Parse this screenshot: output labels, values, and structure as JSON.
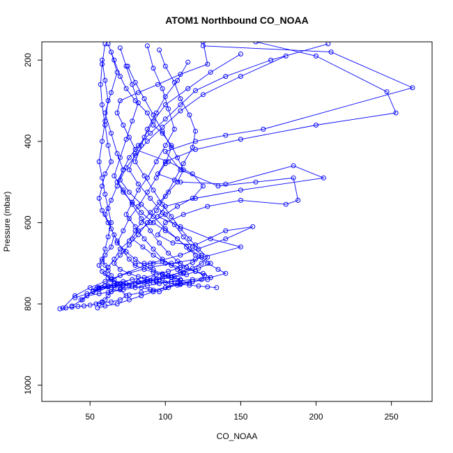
{
  "chart_data": {
    "type": "scatter",
    "title": "ATOM1 Northbound CO_NOAA",
    "xlabel": "CO_NOAA",
    "ylabel": "Pressure (mbar)",
    "xlim": [
      18,
      277
    ],
    "ylim": [
      1040,
      155
    ],
    "y_reversed": true,
    "x_ticks": [
      50,
      100,
      150,
      200,
      250
    ],
    "y_ticks": [
      200,
      400,
      600,
      800,
      1000
    ],
    "grid": false,
    "color": "#0000ff",
    "marker": "open-circle",
    "series": [
      {
        "x": [
          125,
          128,
          110,
          95,
          82,
          70,
          68,
          72,
          76,
          80,
          102,
          118,
          125,
          118,
          108,
          100,
          90,
          82,
          78,
          85,
          92,
          98,
          104,
          110,
          114,
          120,
          125,
          130,
          128,
          118,
          108,
          100,
          92,
          84,
          76,
          68,
          60,
          55
        ],
        "y": [
          155,
          210,
          235,
          260,
          280,
          300,
          330,
          360,
          390,
          420,
          450,
          480,
          510,
          540,
          560,
          580,
          600,
          620,
          640,
          660,
          680,
          695,
          700,
          700,
          710,
          720,
          725,
          735,
          740,
          745,
          750,
          760,
          770,
          780,
          790,
          800,
          805,
          810
        ]
      },
      {
        "x": [
          160,
          200,
          247,
          253,
          200,
          150,
          120,
          100,
          95,
          110,
          140,
          185,
          205,
          150,
          120,
          100,
          95,
          110,
          130,
          150,
          120,
          90,
          70,
          60,
          50,
          40,
          32
        ],
        "y": [
          155,
          190,
          278,
          330,
          360,
          395,
          420,
          450,
          480,
          500,
          505,
          460,
          490,
          520,
          540,
          560,
          585,
          610,
          640,
          660,
          690,
          710,
          730,
          745,
          760,
          780,
          810
        ]
      },
      {
        "x": [
          125,
          210,
          264,
          165,
          140,
          120,
          100,
          110,
          135,
          160,
          185,
          188,
          180,
          150,
          128,
          112,
          100,
          95,
          105,
          120,
          140,
          158,
          140,
          110,
          90,
          70,
          55,
          45,
          38
        ],
        "y": [
          165,
          180,
          268,
          370,
          385,
          400,
          425,
          470,
          510,
          500,
          490,
          545,
          555,
          545,
          560,
          580,
          600,
          630,
          650,
          655,
          620,
          610,
          640,
          680,
          700,
          730,
          760,
          790,
          805
        ]
      },
      {
        "x": [
          62,
          66,
          70,
          74,
          80,
          88,
          92,
          98,
          104,
          108,
          112,
          108,
          102,
          96,
          90,
          84,
          80,
          76,
          70,
          66,
          62,
          60,
          64,
          70,
          76,
          84,
          90,
          96,
          102,
          110,
          118,
          124,
          126,
          120,
          110,
          100,
          92,
          86,
          80
        ],
        "y": [
          160,
          200,
          240,
          270,
          300,
          330,
          360,
          380,
          410,
          440,
          470,
          500,
          525,
          550,
          575,
          600,
          620,
          645,
          665,
          690,
          710,
          725,
          740,
          750,
          755,
          760,
          765,
          770,
          760,
          750,
          745,
          740,
          730,
          720,
          710,
          700,
          700,
          700,
          700
        ]
      },
      {
        "x": [
          60,
          58,
          57,
          58,
          60,
          62,
          64,
          60,
          58,
          56,
          58,
          62,
          66,
          64,
          60,
          58,
          56,
          58,
          62,
          66,
          70,
          74,
          70,
          64,
          58,
          54,
          50,
          46,
          42,
          38,
          34,
          30
        ],
        "y": [
          160,
          210,
          260,
          310,
          360,
          410,
          450,
          480,
          510,
          540,
          570,
          600,
          630,
          660,
          680,
          695,
          705,
          720,
          735,
          750,
          765,
          780,
          790,
          795,
          797,
          800,
          803,
          805,
          806,
          808,
          810,
          812
        ]
      },
      {
        "x": [
          208,
          170,
          140,
          120,
          110,
          100,
          90,
          82,
          76,
          72,
          68,
          72,
          78,
          84,
          92,
          100,
          108,
          114,
          120,
          128,
          135,
          140,
          130,
          118,
          104,
          92,
          80,
          70,
          62,
          56
        ],
        "y": [
          160,
          200,
          240,
          275,
          310,
          345,
          380,
          410,
          440,
          470,
          500,
          525,
          550,
          575,
          600,
          620,
          640,
          660,
          680,
          700,
          715,
          725,
          735,
          740,
          745,
          748,
          750,
          752,
          755,
          760
        ]
      },
      {
        "x": [
          88,
          92,
          98,
          102,
          106,
          100,
          94,
          88,
          82,
          78,
          74,
          80,
          86,
          92,
          98,
          104,
          108,
          112,
          104,
          96,
          88,
          80,
          72,
          64,
          56,
          48,
          40
        ],
        "y": [
          165,
          220,
          270,
          320,
          370,
          410,
          450,
          490,
          520,
          550,
          580,
          610,
          640,
          665,
          690,
          705,
          715,
          725,
          735,
          740,
          745,
          750,
          755,
          760,
          765,
          775,
          785
        ]
      },
      {
        "x": [
          70,
          74,
          78,
          82,
          78,
          74,
          70,
          66,
          72,
          78,
          84,
          90,
          96,
          102,
          108,
          114,
          120,
          114,
          106,
          98,
          90,
          82,
          74,
          66,
          58,
          52,
          48,
          44
        ],
        "y": [
          170,
          215,
          260,
          305,
          350,
          395,
          440,
          485,
          520,
          555,
          590,
          620,
          650,
          675,
          695,
          710,
          720,
          728,
          734,
          738,
          742,
          746,
          750,
          755,
          760,
          770,
          780,
          790
        ]
      },
      {
        "x": [
          96,
          100,
          106,
          110,
          116,
          120,
          118,
          112,
          106,
          100,
          94,
          88,
          82,
          76,
          70,
          66,
          70,
          76,
          82,
          88,
          94,
          100,
          104,
          110,
          116,
          122,
          128,
          134
        ],
        "y": [
          175,
          215,
          255,
          295,
          335,
          375,
          415,
          455,
          495,
          535,
          570,
          600,
          630,
          655,
          680,
          700,
          715,
          725,
          733,
          740,
          745,
          748,
          750,
          752,
          754,
          756,
          758,
          760
        ]
      },
      {
        "x": [
          64,
          68,
          64,
          60,
          64,
          68,
          72,
          68,
          64,
          60,
          64,
          68,
          72,
          76,
          80,
          86,
          92,
          98,
          104,
          110,
          104,
          96,
          88,
          80,
          72,
          64,
          56,
          48
        ],
        "y": [
          180,
          230,
          280,
          330,
          380,
          430,
          470,
          510,
          545,
          580,
          615,
          645,
          670,
          690,
          705,
          715,
          722,
          728,
          734,
          740,
          745,
          750,
          755,
          760,
          765,
          770,
          775,
          780
        ]
      },
      {
        "x": [
          150,
          130,
          115,
          100,
          92,
          86,
          80,
          76,
          82,
          90,
          98,
          106,
          112,
          118,
          124,
          118,
          110,
          102,
          94,
          86,
          78,
          72,
          66,
          60,
          56,
          52
        ],
        "y": [
          185,
          230,
          270,
          310,
          350,
          390,
          430,
          470,
          505,
          540,
          575,
          605,
          635,
          660,
          680,
          698,
          710,
          720,
          728,
          735,
          740,
          745,
          750,
          756,
          762,
          768
        ]
      },
      {
        "x": [
          180,
          150,
          125,
          110,
          98,
          88,
          80,
          74,
          70,
          76,
          84,
          92,
          100,
          108,
          116,
          124,
          130,
          122,
          112,
          102,
          92,
          82,
          72,
          62,
          54
        ],
        "y": [
          190,
          240,
          285,
          325,
          365,
          400,
          435,
          465,
          495,
          525,
          555,
          585,
          615,
          640,
          665,
          685,
          700,
          712,
          722,
          730,
          738,
          745,
          752,
          758,
          764
        ]
      },
      {
        "x": [
          58,
          60,
          62,
          60,
          58,
          56,
          58,
          60,
          62,
          64,
          62,
          60,
          58,
          60,
          62,
          64,
          66,
          68,
          66,
          64,
          62,
          60,
          58,
          56
        ],
        "y": [
          200,
          250,
          300,
          350,
          400,
          450,
          490,
          530,
          565,
          600,
          635,
          665,
          690,
          705,
          718,
          730,
          740,
          750,
          760,
          770,
          780,
          790,
          795,
          800
        ]
      },
      {
        "x": [
          115,
          108,
          100,
          94,
          88,
          84,
          80,
          86,
          92,
          98,
          104,
          110,
          116,
          122,
          128,
          124,
          118,
          110,
          102,
          94,
          86,
          78,
          70,
          62
        ],
        "y": [
          205,
          250,
          290,
          330,
          370,
          410,
          450,
          485,
          520,
          555,
          585,
          615,
          640,
          665,
          685,
          700,
          712,
          722,
          732,
          740,
          748,
          756,
          764,
          772
        ]
      },
      {
        "x": [
          75,
          80,
          86,
          92,
          98,
          104,
          100,
          94,
          88,
          82,
          76,
          72,
          68,
          74,
          80,
          86,
          92,
          98,
          104,
          110,
          116,
          108,
          100,
          92,
          84,
          76
        ],
        "y": [
          215,
          255,
          295,
          335,
          375,
          415,
          455,
          490,
          525,
          560,
          590,
          620,
          650,
          672,
          690,
          705,
          716,
          726,
          734,
          742,
          748,
          754,
          760,
          766,
          772,
          778
        ]
      }
    ]
  }
}
